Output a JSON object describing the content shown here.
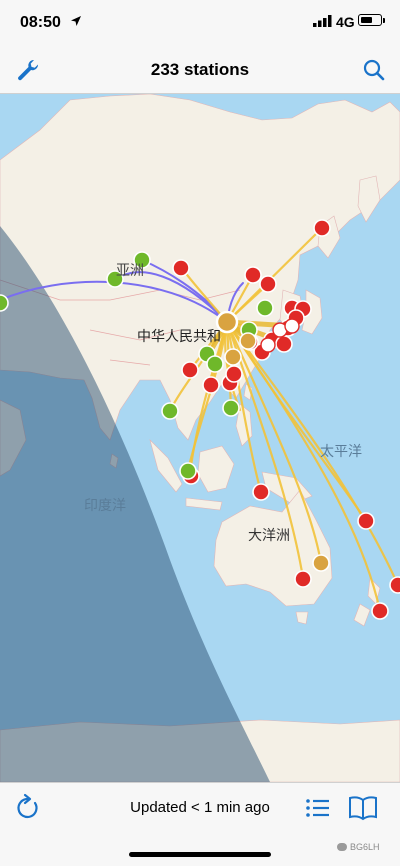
{
  "status_bar": {
    "time": "08:50",
    "network": "4G",
    "icons": [
      "location-arrow-icon",
      "signal-bars-icon",
      "battery-icon"
    ]
  },
  "nav": {
    "title": "233 stations",
    "left_icon": "wrench-icon",
    "right_icon": "search-icon",
    "accent_color": "#1a73c9"
  },
  "map": {
    "labels": {
      "asia": "亚洲",
      "china": "中华人民共和",
      "indian_ocean": "印度洋",
      "pacific": "太平洋",
      "oceania": "大洋洲"
    },
    "colors": {
      "ocean": "#a9d7f2",
      "land": "#f4f0e6",
      "night_overlay": "#2a4f72",
      "path_yellow": "#f2c23a",
      "path_purple": "#7a6ef0",
      "marker_red": "#e02a27",
      "marker_green": "#6fb82a",
      "marker_orange": "#d9a340"
    }
  },
  "toolbar": {
    "updated_text": "Updated < 1 min ago",
    "icons": [
      "refresh-icon",
      "list-icon",
      "book-icon"
    ]
  },
  "watermark": "BG6LH"
}
